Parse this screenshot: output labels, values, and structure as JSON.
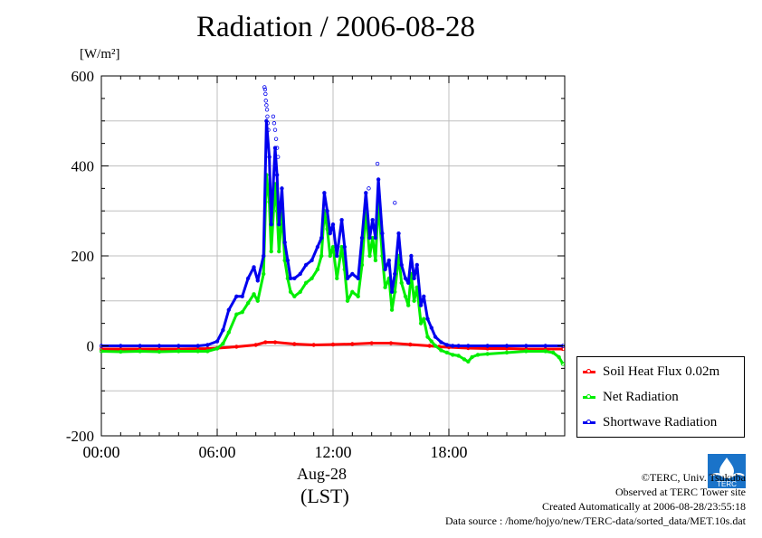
{
  "chart_data": {
    "type": "line",
    "title": "Radiation / 2006-08-28",
    "unit": "[W/m²]",
    "xlabel_date": "Aug-28",
    "xlabel": "(LST)",
    "xlim_hours": [
      0,
      24
    ],
    "ylim": [
      -200,
      600
    ],
    "x_ticks": [
      "00:00",
      "06:00",
      "12:00",
      "18:00"
    ],
    "x_tick_hours": [
      0,
      6,
      12,
      18
    ],
    "y_ticks": [
      -200,
      0,
      200,
      400,
      600
    ],
    "grid": true,
    "legend_position": "bottom-right outside",
    "series": [
      {
        "name": "Soil Heat Flux 0.02m",
        "color": "#ff0000",
        "x": [
          0,
          2,
          4,
          5.5,
          6,
          7,
          8,
          8.5,
          9,
          10,
          11,
          12,
          13,
          14,
          15,
          16,
          17,
          17.5,
          18,
          19,
          20,
          21,
          22,
          23,
          23.9
        ],
        "y": [
          -7,
          -7,
          -7,
          -6,
          -5,
          -2,
          2,
          8,
          8,
          4,
          2,
          3,
          4,
          6,
          6,
          3,
          0,
          -2,
          -3,
          -5,
          -6,
          -6,
          -7,
          -7,
          -7
        ]
      },
      {
        "name": "Net Radiation",
        "color": "#00ee00",
        "x": [
          0,
          1,
          2,
          3,
          4,
          5,
          5.5,
          6,
          6.3,
          6.6,
          7.0,
          7.3,
          7.6,
          7.9,
          8.1,
          8.4,
          8.55,
          8.7,
          8.8,
          9.0,
          9.1,
          9.2,
          9.35,
          9.5,
          9.65,
          9.8,
          10.0,
          10.3,
          10.6,
          10.9,
          11.2,
          11.4,
          11.55,
          11.7,
          11.85,
          12.0,
          12.2,
          12.45,
          12.6,
          12.75,
          13.0,
          13.3,
          13.5,
          13.7,
          13.9,
          14.05,
          14.2,
          14.35,
          14.55,
          14.7,
          14.9,
          15.05,
          15.2,
          15.4,
          15.55,
          15.75,
          15.9,
          16.05,
          16.2,
          16.35,
          16.55,
          16.7,
          16.9,
          17.1,
          17.3,
          17.6,
          17.9,
          18.2,
          18.5,
          18.8,
          19.0,
          19.2,
          19.5,
          20,
          21,
          22,
          23,
          23.4,
          23.7,
          23.9
        ],
        "y": [
          -12,
          -13,
          -12,
          -13,
          -12,
          -12,
          -12,
          -6,
          5,
          30,
          70,
          75,
          95,
          115,
          100,
          160,
          380,
          320,
          210,
          360,
          300,
          210,
          300,
          190,
          150,
          120,
          110,
          120,
          140,
          150,
          170,
          200,
          300,
          260,
          200,
          220,
          150,
          220,
          170,
          100,
          120,
          110,
          180,
          300,
          200,
          240,
          190,
          320,
          200,
          130,
          150,
          80,
          120,
          200,
          140,
          110,
          90,
          160,
          100,
          130,
          50,
          60,
          20,
          10,
          0,
          -10,
          -15,
          -20,
          -22,
          -30,
          -35,
          -25,
          -20,
          -18,
          -15,
          -12,
          -12,
          -15,
          -25,
          -40
        ]
      },
      {
        "name": "Shortwave Radiation",
        "color": "#0000ee",
        "x": [
          0,
          1,
          2,
          3,
          4,
          5,
          5.5,
          6,
          6.3,
          6.6,
          7.0,
          7.3,
          7.6,
          7.9,
          8.1,
          8.4,
          8.55,
          8.7,
          8.8,
          9.0,
          9.1,
          9.2,
          9.35,
          9.5,
          9.65,
          9.8,
          10.0,
          10.3,
          10.6,
          10.9,
          11.2,
          11.4,
          11.55,
          11.7,
          11.85,
          12.0,
          12.2,
          12.45,
          12.6,
          12.75,
          13.0,
          13.3,
          13.5,
          13.7,
          13.9,
          14.05,
          14.2,
          14.35,
          14.55,
          14.7,
          14.9,
          15.05,
          15.2,
          15.4,
          15.55,
          15.75,
          15.9,
          16.05,
          16.2,
          16.35,
          16.55,
          16.7,
          16.9,
          17.1,
          17.3,
          17.6,
          17.9,
          18.2,
          18.5,
          19,
          20,
          21,
          22,
          23,
          23.9
        ],
        "y": [
          0,
          0,
          0,
          0,
          0,
          0,
          2,
          10,
          35,
          80,
          110,
          110,
          150,
          175,
          145,
          200,
          500,
          420,
          270,
          440,
          380,
          270,
          350,
          230,
          190,
          150,
          150,
          160,
          180,
          190,
          220,
          240,
          340,
          300,
          250,
          270,
          200,
          280,
          220,
          150,
          160,
          150,
          240,
          340,
          240,
          280,
          240,
          370,
          250,
          170,
          190,
          120,
          160,
          250,
          180,
          150,
          140,
          200,
          150,
          180,
          90,
          110,
          60,
          40,
          20,
          8,
          2,
          0,
          0,
          0,
          0,
          0,
          0,
          0,
          0
        ]
      }
    ],
    "scatter_points": {
      "color": "#0000ee",
      "x": [
        8.45,
        8.48,
        8.5,
        8.52,
        8.55,
        8.58,
        8.6,
        8.62,
        8.65,
        8.9,
        8.95,
        9.0,
        9.05,
        9.1,
        9.15,
        14.3,
        15.2,
        13.85
      ],
      "y": [
        575,
        570,
        560,
        545,
        535,
        525,
        510,
        495,
        480,
        510,
        495,
        480,
        460,
        440,
        420,
        405,
        318,
        350
      ]
    }
  },
  "credits": {
    "copyright": "©TERC, Univ. Tsukuba",
    "observed": "Observed at TERC Tower site",
    "created": "Created Automatically at 2006-08-28/23:55:18",
    "source": "Data source : /home/hojyo/new/TERC-data/sorted_data/MET.10s.dat"
  },
  "logo": {
    "text": "TERC",
    "color": "#1a73c9"
  }
}
